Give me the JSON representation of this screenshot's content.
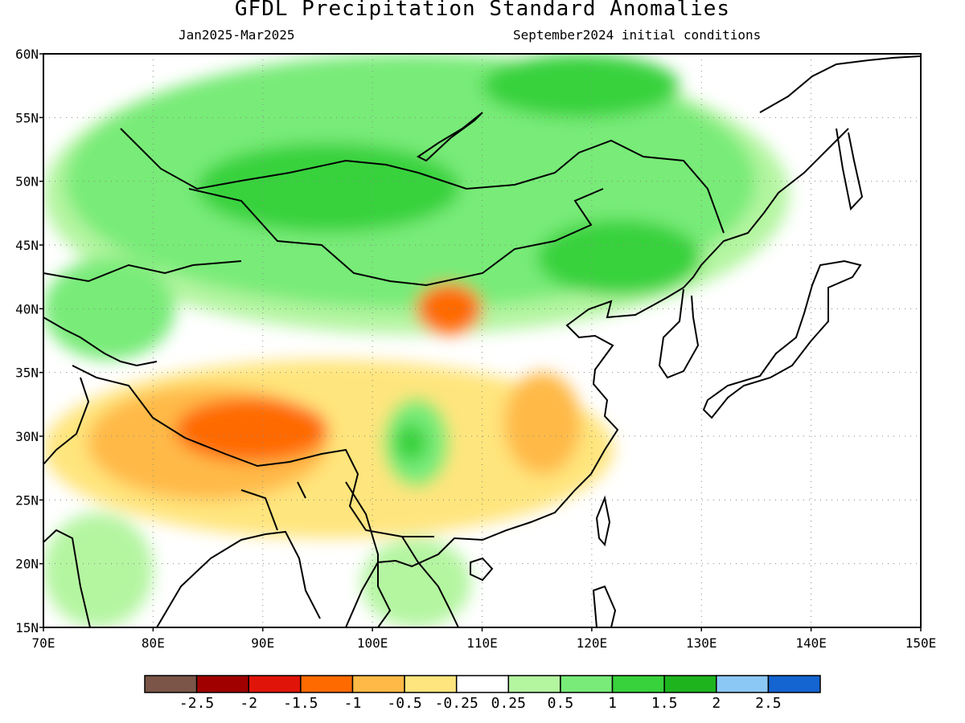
{
  "title": "GFDL Precipitation Standard Anomalies",
  "valid_period": "Jan2025-Mar2025",
  "initial_conditions": "September2024 initial conditions",
  "map": {
    "lon_range": [
      70,
      150
    ],
    "lat_range": [
      15,
      60
    ],
    "lon_ticks": [
      {
        "value": 70,
        "label": "70E"
      },
      {
        "value": 80,
        "label": "80E"
      },
      {
        "value": 90,
        "label": "90E"
      },
      {
        "value": 100,
        "label": "100E"
      },
      {
        "value": 110,
        "label": "110E"
      },
      {
        "value": 120,
        "label": "120E"
      },
      {
        "value": 130,
        "label": "130E"
      },
      {
        "value": 140,
        "label": "140E"
      },
      {
        "value": 150,
        "label": "150E"
      }
    ],
    "lat_ticks": [
      {
        "value": 60,
        "label": "60N"
      },
      {
        "value": 55,
        "label": "55N"
      },
      {
        "value": 50,
        "label": "50N"
      },
      {
        "value": 45,
        "label": "45N"
      },
      {
        "value": 40,
        "label": "40N"
      },
      {
        "value": 35,
        "label": "35N"
      },
      {
        "value": 30,
        "label": "30N"
      },
      {
        "value": 25,
        "label": "25N"
      },
      {
        "value": 20,
        "label": "20N"
      },
      {
        "value": 15,
        "label": "15N"
      }
    ],
    "grid": true
  },
  "colorbar": {
    "colors": [
      "#7a5548",
      "#a00000",
      "#e1140a",
      "#ff6a00",
      "#ffb946",
      "#ffe57d",
      "#ffffff",
      "#b4f5a0",
      "#78eb78",
      "#37d23c",
      "#1eb41e",
      "#8cc8f5",
      "#1464d2"
    ],
    "labels": [
      "-2.5",
      "-2",
      "-1.5",
      "-1",
      "-0.5",
      "-0.25",
      "0.25",
      "0.5",
      "1",
      "1.5",
      "2",
      "2.5"
    ]
  },
  "anomaly_regions": [
    {
      "level": "0.5",
      "color": "#b4f5a0",
      "lon": [
        70,
        138
      ],
      "lat": [
        38,
        60
      ]
    },
    {
      "level": "1",
      "color": "#78eb78",
      "lon": [
        72,
        135
      ],
      "lat": [
        40,
        60
      ]
    },
    {
      "level": "1",
      "color": "#78eb78",
      "lon": [
        70,
        82
      ],
      "lat": [
        36,
        44
      ]
    },
    {
      "level": "1.5",
      "color": "#37d23c",
      "lon": [
        84,
        108
      ],
      "lat": [
        46,
        53
      ]
    },
    {
      "level": "1.5",
      "color": "#37d23c",
      "lon": [
        110,
        128
      ],
      "lat": [
        55,
        60
      ]
    },
    {
      "level": "1.5",
      "color": "#37d23c",
      "lon": [
        115,
        130
      ],
      "lat": [
        41,
        47
      ]
    },
    {
      "level": "-0.25",
      "color": "#ffe57d",
      "lon": [
        70,
        122
      ],
      "lat": [
        22,
        36
      ]
    },
    {
      "level": "-0.5",
      "color": "#ffb946",
      "lon": [
        74,
        96
      ],
      "lat": [
        25,
        34
      ]
    },
    {
      "level": "-0.5",
      "color": "#ffb946",
      "lon": [
        112,
        119
      ],
      "lat": [
        27,
        35
      ]
    },
    {
      "level": "-1",
      "color": "#ff6a00",
      "lon": [
        82,
        96
      ],
      "lat": [
        28,
        33
      ]
    },
    {
      "level": "-1",
      "color": "#ff6a00",
      "lon": [
        104,
        110
      ],
      "lat": [
        38,
        42
      ]
    },
    {
      "level": "1",
      "color": "#78eb78",
      "lon": [
        101,
        107
      ],
      "lat": [
        26,
        33
      ]
    },
    {
      "level": "1.5",
      "color": "#37d23c",
      "lon": [
        102,
        105
      ],
      "lat": [
        28,
        31
      ]
    },
    {
      "level": "0.5",
      "color": "#b4f5a0",
      "lon": [
        99,
        109
      ],
      "lat": [
        15,
        22
      ]
    },
    {
      "level": "0.5",
      "color": "#b4f5a0",
      "lon": [
        70,
        80
      ],
      "lat": [
        15,
        24
      ]
    }
  ]
}
